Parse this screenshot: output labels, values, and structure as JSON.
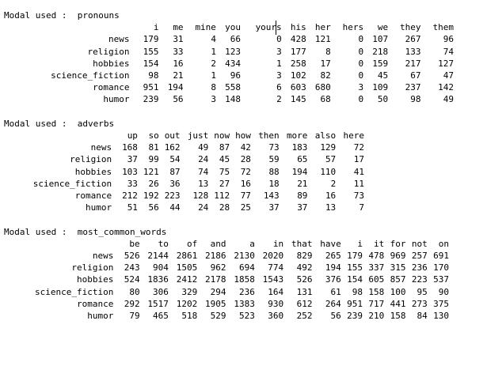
{
  "modal_prefix": "Modal used :",
  "tables": [
    {
      "name": "pronouns",
      "columns": [
        "i",
        "me",
        "mine",
        "you",
        "yours",
        "his",
        "her",
        "hers",
        "we",
        "they",
        "them"
      ],
      "rows": [
        {
          "label": "news",
          "values": [
            "179",
            "31",
            "4",
            "66",
            "0",
            "428",
            "121",
            "0",
            "107",
            "267",
            "96"
          ]
        },
        {
          "label": "religion",
          "values": [
            "155",
            "33",
            "1",
            "123",
            "3",
            "177",
            "8",
            "0",
            "218",
            "133",
            "74"
          ]
        },
        {
          "label": "hobbies",
          "values": [
            "154",
            "16",
            "2",
            "434",
            "1",
            "258",
            "17",
            "0",
            "159",
            "217",
            "127"
          ]
        },
        {
          "label": "science_fiction",
          "values": [
            "98",
            "21",
            "1",
            "96",
            "3",
            "102",
            "82",
            "0",
            "45",
            "67",
            "47"
          ]
        },
        {
          "label": "romance",
          "values": [
            "951",
            "194",
            "8",
            "558",
            "6",
            "603",
            "680",
            "3",
            "109",
            "237",
            "142"
          ]
        },
        {
          "label": "humor",
          "values": [
            "239",
            "56",
            "3",
            "148",
            "2",
            "145",
            "68",
            "0",
            "50",
            "98",
            "49"
          ]
        }
      ]
    },
    {
      "name": "adverbs",
      "columns": [
        "up",
        "so",
        "out",
        "just",
        "now",
        "how",
        "then",
        "more",
        "also",
        "here"
      ],
      "rows": [
        {
          "label": "news",
          "values": [
            "168",
            "81",
            "162",
            "49",
            "87",
            "42",
            "73",
            "183",
            "129",
            "72"
          ]
        },
        {
          "label": "religion",
          "values": [
            "37",
            "99",
            "54",
            "24",
            "45",
            "28",
            "59",
            "65",
            "57",
            "17"
          ]
        },
        {
          "label": "hobbies",
          "values": [
            "103",
            "121",
            "87",
            "74",
            "75",
            "72",
            "88",
            "194",
            "110",
            "41"
          ]
        },
        {
          "label": "science_fiction",
          "values": [
            "33",
            "26",
            "36",
            "13",
            "27",
            "16",
            "18",
            "21",
            "2",
            "11"
          ]
        },
        {
          "label": "romance",
          "values": [
            "212",
            "192",
            "223",
            "128",
            "112",
            "77",
            "143",
            "89",
            "16",
            "73"
          ]
        },
        {
          "label": "humor",
          "values": [
            "51",
            "56",
            "44",
            "24",
            "28",
            "25",
            "37",
            "37",
            "13",
            "7"
          ]
        }
      ]
    },
    {
      "name": "most_common_words",
      "columns": [
        "be",
        "to",
        "of",
        "and",
        "a",
        "in",
        "that",
        "have",
        "i",
        "it",
        "for",
        "not",
        "on"
      ],
      "rows": [
        {
          "label": "news",
          "values": [
            "526",
            "2144",
            "2861",
            "2186",
            "2130",
            "2020",
            "829",
            "265",
            "179",
            "478",
            "969",
            "257",
            "691"
          ]
        },
        {
          "label": "religion",
          "values": [
            "243",
            "904",
            "1505",
            "962",
            "694",
            "774",
            "492",
            "194",
            "155",
            "337",
            "315",
            "236",
            "170"
          ]
        },
        {
          "label": "hobbies",
          "values": [
            "524",
            "1836",
            "2412",
            "2178",
            "1858",
            "1543",
            "526",
            "376",
            "154",
            "605",
            "857",
            "223",
            "537"
          ]
        },
        {
          "label": "science_fiction",
          "values": [
            "80",
            "306",
            "329",
            "294",
            "236",
            "164",
            "131",
            "61",
            "98",
            "158",
            "100",
            "95",
            "90"
          ]
        },
        {
          "label": "romance",
          "values": [
            "292",
            "1517",
            "1202",
            "1905",
            "1383",
            "930",
            "612",
            "264",
            "951",
            "717",
            "441",
            "273",
            "375"
          ]
        },
        {
          "label": "humor",
          "values": [
            "79",
            "465",
            "518",
            "529",
            "523",
            "360",
            "252",
            "56",
            "239",
            "210",
            "158",
            "84",
            "130"
          ]
        }
      ]
    }
  ]
}
